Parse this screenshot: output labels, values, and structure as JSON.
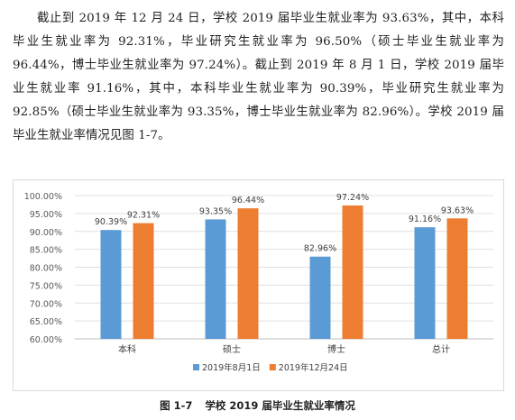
{
  "paragraph": "截止到 2019 年 12 月 24 日，学校 2019 届毕业生就业率为 93.63%，其中，本科毕业生就业率为 92.31%，毕业研究生就业率为 96.50%（硕士毕业生就业率为 96.44%，博士毕业生就业率为 97.24%）。截止到 2019 年 8 月 1 日，学校 2019 届毕业生就业率 91.16%，其中，本科毕业生就业率为 90.39%，毕业研究生就业率为 92.85%（硕士毕业生就业率为 93.35%，博士毕业生就业率为 82.96%）。学校 2019 届毕业生就业率情况见图 1-7。",
  "caption": {
    "number": "图 1-7",
    "text": "学校 2019 届毕业生就业率情况"
  },
  "chart_data": {
    "type": "bar",
    "title": "",
    "xlabel": "",
    "ylabel": "",
    "categories": [
      "本科",
      "硕士",
      "博士",
      "总计"
    ],
    "ylim": [
      60,
      100
    ],
    "yticks": [
      "60.00%",
      "65.00%",
      "70.00%",
      "75.00%",
      "80.00%",
      "85.00%",
      "90.00%",
      "95.00%",
      "100.00%"
    ],
    "grid": true,
    "legend_position": "bottom",
    "series": [
      {
        "name": "2019年8月1日",
        "color": "#5b9bd5",
        "values": [
          90.39,
          93.35,
          82.96,
          91.16
        ],
        "labels": [
          "90.39%",
          "93.35%",
          "82.96%",
          "91.16%"
        ]
      },
      {
        "name": "2019年12月24日",
        "color": "#ed7d31",
        "values": [
          92.31,
          96.44,
          97.24,
          93.63
        ],
        "labels": [
          "92.31%",
          "96.44%",
          "97.24%",
          "93.63%"
        ]
      }
    ]
  }
}
